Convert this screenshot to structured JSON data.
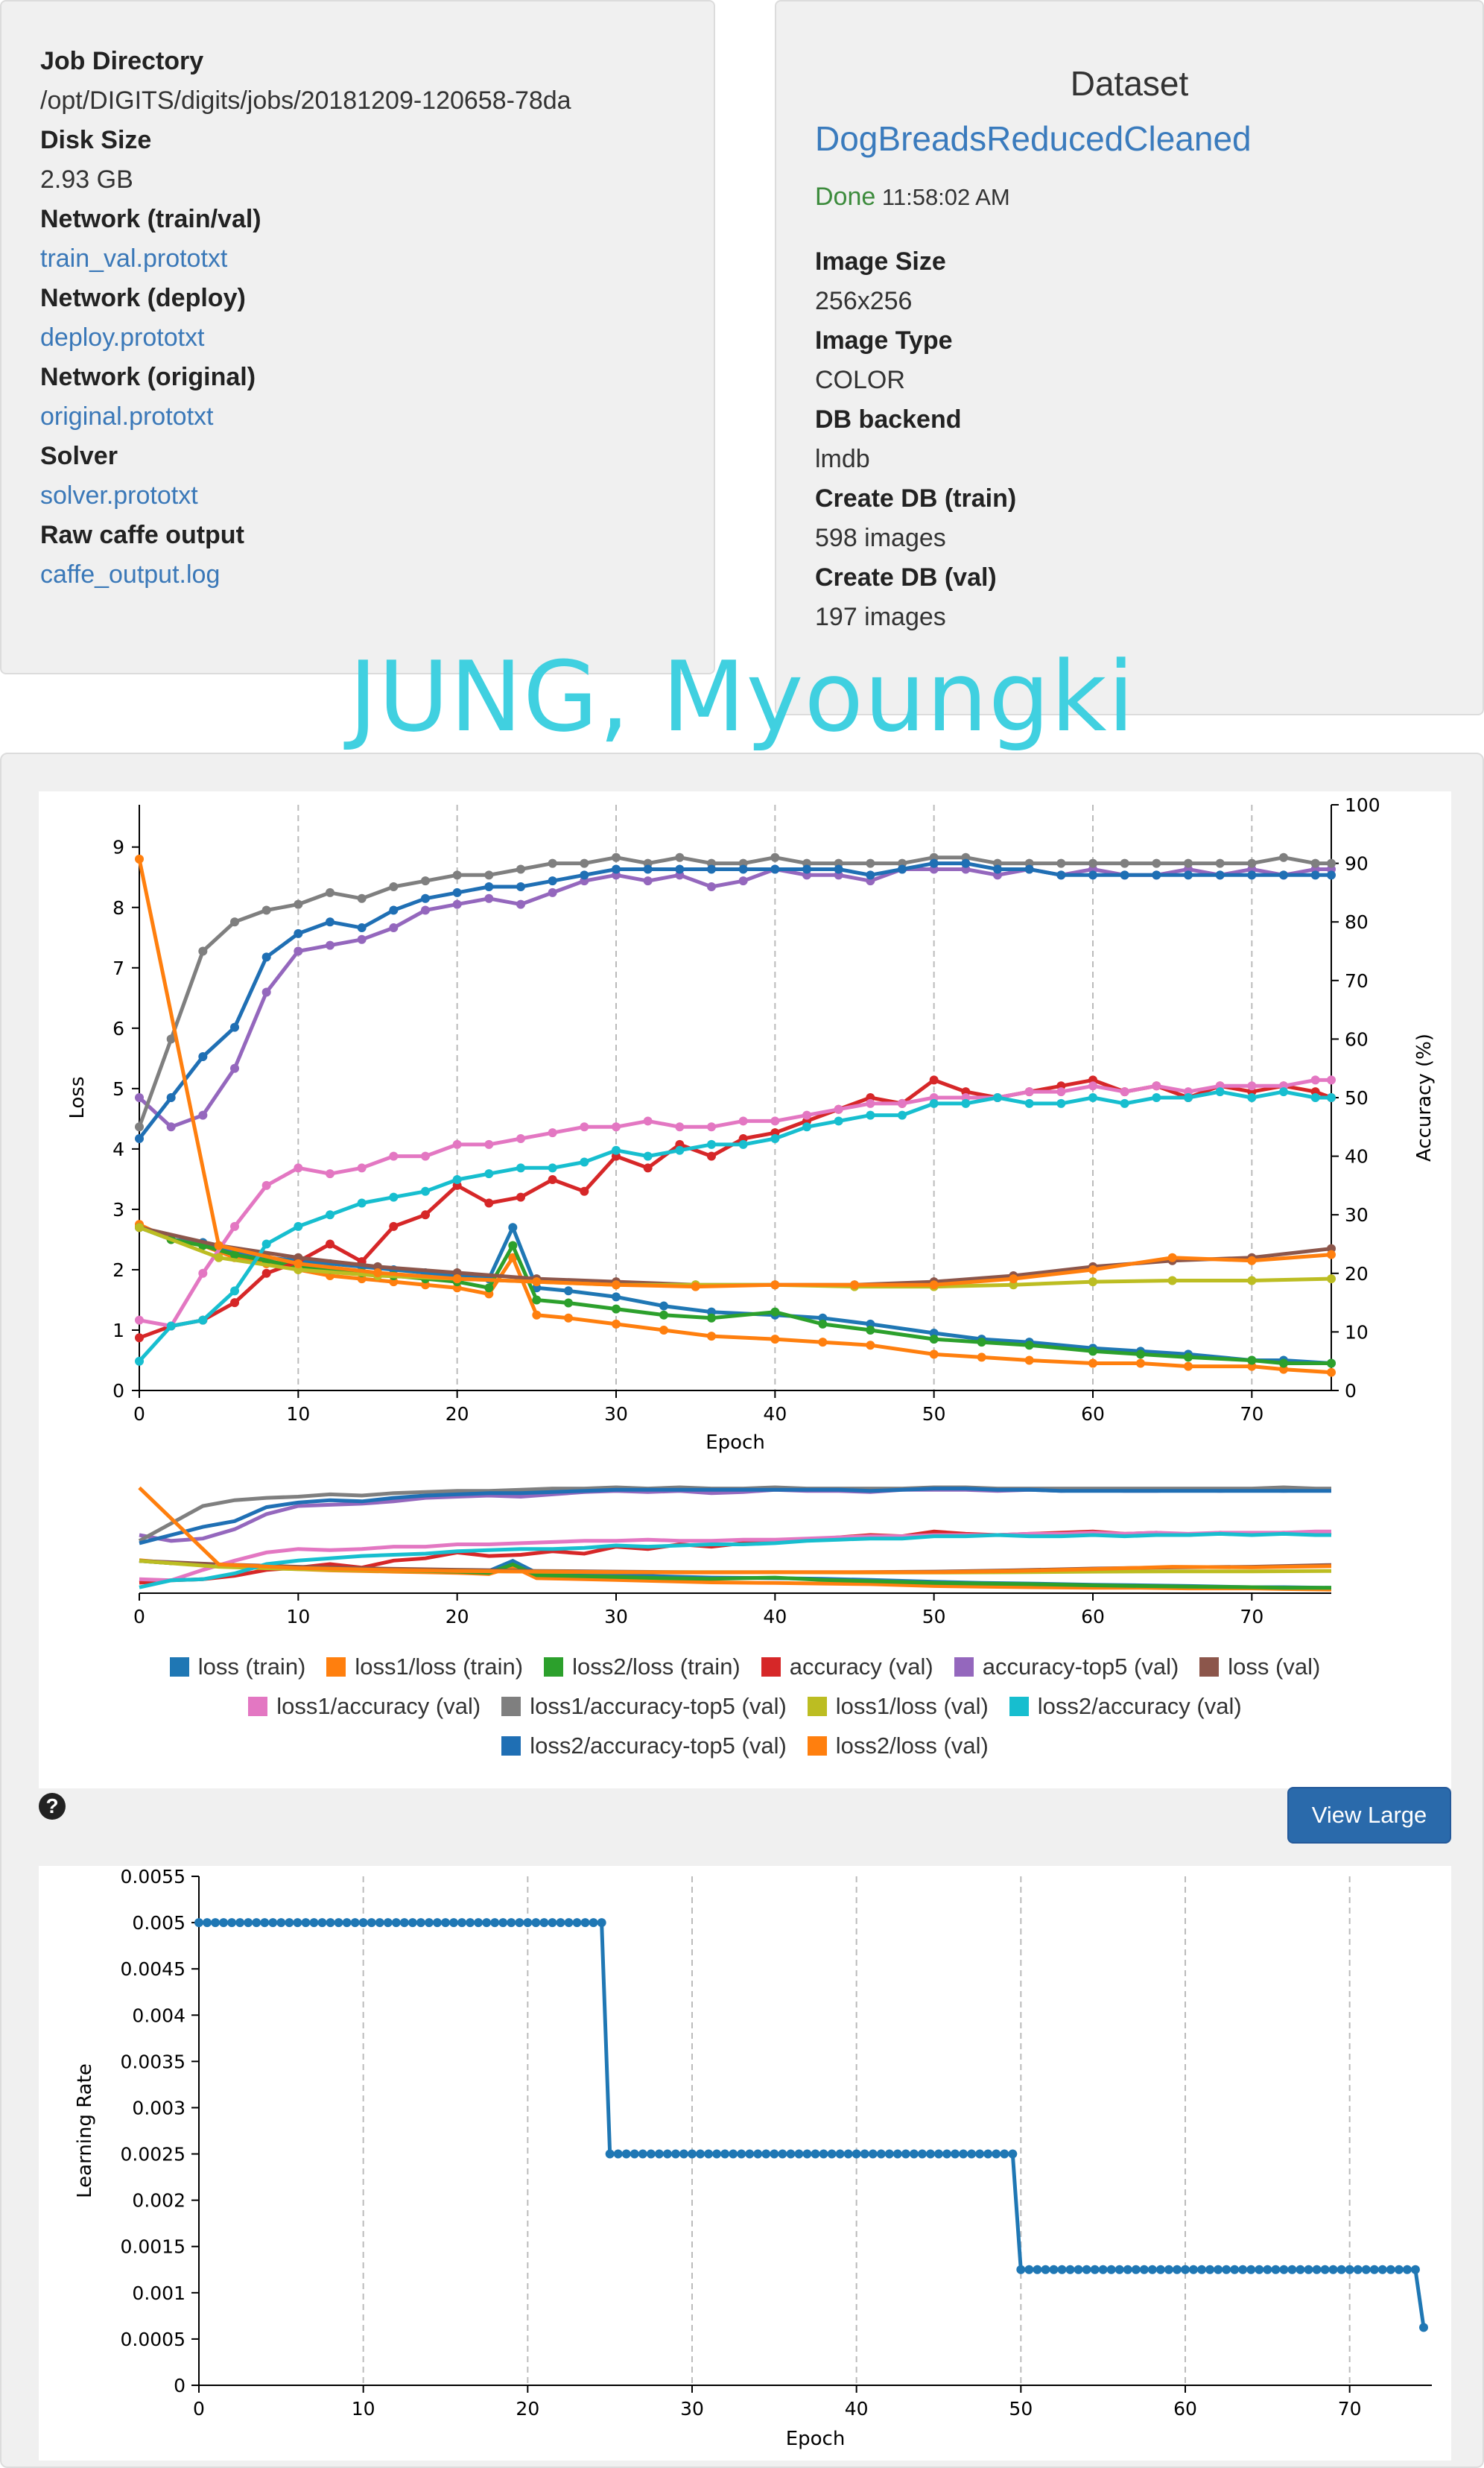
{
  "job": {
    "job_directory_label": "Job Directory",
    "job_directory_value": "/opt/DIGITS/digits/jobs/20181209-120658-78da",
    "disk_size_label": "Disk Size",
    "disk_size_value": "2.93 GB",
    "network_trainval_label": "Network (train/val)",
    "network_trainval_link": "train_val.prototxt",
    "network_deploy_label": "Network (deploy)",
    "network_deploy_link": "deploy.prototxt",
    "network_original_label": "Network (original)",
    "network_original_link": "original.prototxt",
    "solver_label": "Solver",
    "solver_link": "solver.prototxt",
    "raw_output_label": "Raw caffe output",
    "raw_output_link": "caffe_output.log"
  },
  "dataset": {
    "title": "Dataset",
    "name": "DogBreadsReducedCleaned",
    "status": "Done",
    "time": "11:58:02 AM",
    "image_size_label": "Image Size",
    "image_size_value": "256x256",
    "image_type_label": "Image Type",
    "image_type_value": "COLOR",
    "db_backend_label": "DB backend",
    "db_backend_value": "lmdb",
    "create_train_label": "Create DB (train)",
    "create_train_value": "598 images",
    "create_val_label": "Create DB (val)",
    "create_val_value": "197 images"
  },
  "watermark": "JUNG, Myoungki",
  "view_large_label": "View Large",
  "help_glyph": "?",
  "chart_data": [
    {
      "type": "line",
      "xlabel": "Epoch",
      "ylabel": "Loss",
      "y2label": "Accuracy (%)",
      "xlim": [
        0,
        75
      ],
      "ylim": [
        0,
        9.7
      ],
      "y2lim": [
        0,
        100
      ],
      "xticks": [
        "0",
        "10",
        "20",
        "30",
        "40",
        "50",
        "60",
        "70"
      ],
      "yticks": [
        "0",
        "1",
        "2",
        "3",
        "4",
        "5",
        "6",
        "7",
        "8",
        "9"
      ],
      "y2ticks": [
        "0",
        "10",
        "20",
        "30",
        "40",
        "50",
        "60",
        "70",
        "80",
        "90",
        "100"
      ],
      "grid": "vertical dashed at x ticks",
      "series": [
        {
          "name": "loss (train)",
          "color": "#1f77b4",
          "axis": "loss",
          "x": [
            0,
            2,
            4,
            6,
            8,
            10,
            12,
            14,
            16,
            18,
            20,
            22,
            23.5,
            25,
            27,
            30,
            33,
            36,
            40,
            43,
            46,
            50,
            53,
            56,
            60,
            63,
            66,
            70,
            72,
            75
          ],
          "values": [
            2.7,
            2.5,
            2.45,
            2.3,
            2.2,
            2.15,
            2.1,
            2.05,
            2.0,
            1.95,
            1.9,
            1.85,
            2.7,
            1.7,
            1.65,
            1.55,
            1.4,
            1.3,
            1.25,
            1.2,
            1.1,
            0.95,
            0.85,
            0.8,
            0.7,
            0.65,
            0.6,
            0.5,
            0.5,
            0.45
          ]
        },
        {
          "name": "loss1/loss (train)",
          "color": "#ff7f0e",
          "axis": "loss",
          "x": [
            0,
            2,
            4,
            6,
            8,
            10,
            12,
            14,
            16,
            18,
            20,
            22,
            23.5,
            25,
            27,
            30,
            33,
            36,
            40,
            43,
            46,
            50,
            53,
            56,
            60,
            63,
            66,
            70,
            72,
            75
          ],
          "values": [
            2.75,
            2.5,
            2.4,
            2.2,
            2.1,
            2.0,
            1.9,
            1.85,
            1.8,
            1.75,
            1.7,
            1.6,
            2.2,
            1.25,
            1.2,
            1.1,
            1.0,
            0.9,
            0.85,
            0.8,
            0.75,
            0.6,
            0.55,
            0.5,
            0.45,
            0.45,
            0.4,
            0.4,
            0.35,
            0.3
          ]
        },
        {
          "name": "loss2/loss (train)",
          "color": "#2ca02c",
          "axis": "loss",
          "x": [
            0,
            2,
            4,
            6,
            8,
            10,
            12,
            14,
            16,
            18,
            20,
            22,
            23.5,
            25,
            27,
            30,
            33,
            36,
            40,
            43,
            46,
            50,
            53,
            56,
            60,
            63,
            66,
            70,
            72,
            75
          ],
          "values": [
            2.7,
            2.5,
            2.4,
            2.25,
            2.15,
            2.05,
            2.0,
            1.95,
            1.9,
            1.85,
            1.8,
            1.7,
            2.4,
            1.5,
            1.45,
            1.35,
            1.25,
            1.2,
            1.3,
            1.1,
            1.0,
            0.85,
            0.8,
            0.75,
            0.65,
            0.6,
            0.55,
            0.5,
            0.45,
            0.45
          ]
        },
        {
          "name": "accuracy (val)",
          "color": "#d62728",
          "axis": "accuracy",
          "x": [
            0,
            2,
            4,
            6,
            8,
            10,
            12,
            14,
            16,
            18,
            20,
            22,
            24,
            26,
            28,
            30,
            32,
            34,
            36,
            38,
            40,
            42,
            44,
            46,
            48,
            50,
            52,
            54,
            56,
            58,
            60,
            62,
            64,
            66,
            68,
            70,
            72,
            74,
            75
          ],
          "values": [
            9,
            11,
            12,
            15,
            20,
            22,
            25,
            22,
            28,
            30,
            35,
            32,
            33,
            36,
            34,
            40,
            38,
            42,
            40,
            43,
            44,
            46,
            48,
            50,
            49,
            53,
            51,
            50,
            51,
            52,
            53,
            51,
            52,
            50,
            52,
            51,
            52,
            51,
            50
          ]
        },
        {
          "name": "accuracy-top5 (val)",
          "color": "#9467bd",
          "axis": "accuracy",
          "x": [
            0,
            2,
            4,
            6,
            8,
            10,
            12,
            14,
            16,
            18,
            20,
            22,
            24,
            26,
            28,
            30,
            32,
            34,
            36,
            38,
            40,
            42,
            44,
            46,
            48,
            50,
            52,
            54,
            56,
            58,
            60,
            62,
            64,
            66,
            68,
            70,
            72,
            74,
            75
          ],
          "values": [
            50,
            45,
            47,
            55,
            68,
            75,
            76,
            77,
            79,
            82,
            83,
            84,
            83,
            85,
            87,
            88,
            87,
            88,
            86,
            87,
            89,
            88,
            88,
            87,
            89,
            89,
            89,
            88,
            89,
            88,
            89,
            88,
            88,
            89,
            88,
            89,
            88,
            89,
            89
          ]
        },
        {
          "name": "loss (val)",
          "color": "#8c564b",
          "axis": "loss",
          "x": [
            0,
            5,
            10,
            15,
            20,
            25,
            30,
            35,
            40,
            45,
            50,
            55,
            60,
            65,
            70,
            75
          ],
          "values": [
            2.7,
            2.4,
            2.2,
            2.05,
            1.95,
            1.85,
            1.8,
            1.75,
            1.75,
            1.75,
            1.8,
            1.9,
            2.05,
            2.15,
            2.2,
            2.35
          ]
        },
        {
          "name": "loss1/accuracy (val)",
          "color": "#e377c2",
          "axis": "accuracy",
          "x": [
            0,
            2,
            4,
            6,
            8,
            10,
            12,
            14,
            16,
            18,
            20,
            22,
            24,
            26,
            28,
            30,
            32,
            34,
            36,
            38,
            40,
            42,
            44,
            46,
            48,
            50,
            52,
            54,
            56,
            58,
            60,
            62,
            64,
            66,
            68,
            70,
            72,
            74,
            75
          ],
          "values": [
            12,
            11,
            20,
            28,
            35,
            38,
            37,
            38,
            40,
            40,
            42,
            42,
            43,
            44,
            45,
            45,
            46,
            45,
            45,
            46,
            46,
            47,
            48,
            49,
            49,
            50,
            50,
            50,
            51,
            51,
            52,
            51,
            52,
            51,
            52,
            52,
            52,
            53,
            53
          ]
        },
        {
          "name": "loss1/accuracy-top5 (val)",
          "color": "#7f7f7f",
          "axis": "accuracy",
          "x": [
            0,
            2,
            4,
            6,
            8,
            10,
            12,
            14,
            16,
            18,
            20,
            22,
            24,
            26,
            28,
            30,
            32,
            34,
            36,
            38,
            40,
            42,
            44,
            46,
            48,
            50,
            52,
            54,
            56,
            58,
            60,
            62,
            64,
            66,
            68,
            70,
            72,
            74,
            75
          ],
          "values": [
            45,
            60,
            75,
            80,
            82,
            83,
            85,
            84,
            86,
            87,
            88,
            88,
            89,
            90,
            90,
            91,
            90,
            91,
            90,
            90,
            91,
            90,
            90,
            90,
            90,
            91,
            91,
            90,
            90,
            90,
            90,
            90,
            90,
            90,
            90,
            90,
            91,
            90,
            90
          ]
        },
        {
          "name": "loss1/loss (val)",
          "color": "#bcbd22",
          "axis": "loss",
          "x": [
            0,
            5,
            10,
            15,
            20,
            25,
            30,
            35,
            40,
            45,
            50,
            55,
            60,
            65,
            70,
            75
          ],
          "values": [
            2.7,
            2.2,
            2.0,
            1.9,
            1.85,
            1.8,
            1.75,
            1.75,
            1.75,
            1.72,
            1.72,
            1.75,
            1.8,
            1.82,
            1.82,
            1.85
          ]
        },
        {
          "name": "loss2/accuracy (val)",
          "color": "#17becf",
          "axis": "accuracy",
          "x": [
            0,
            2,
            4,
            6,
            8,
            10,
            12,
            14,
            16,
            18,
            20,
            22,
            24,
            26,
            28,
            30,
            32,
            34,
            36,
            38,
            40,
            42,
            44,
            46,
            48,
            50,
            52,
            54,
            56,
            58,
            60,
            62,
            64,
            66,
            68,
            70,
            72,
            74,
            75
          ],
          "values": [
            5,
            11,
            12,
            17,
            25,
            28,
            30,
            32,
            33,
            34,
            36,
            37,
            38,
            38,
            39,
            41,
            40,
            41,
            42,
            42,
            43,
            45,
            46,
            47,
            47,
            49,
            49,
            50,
            49,
            49,
            50,
            49,
            50,
            50,
            51,
            50,
            51,
            50,
            50
          ]
        },
        {
          "name": "loss2/accuracy-top5 (val)",
          "color": "#1f6fb4",
          "axis": "accuracy",
          "x": [
            0,
            2,
            4,
            6,
            8,
            10,
            12,
            14,
            16,
            18,
            20,
            22,
            24,
            26,
            28,
            30,
            32,
            34,
            36,
            38,
            40,
            42,
            44,
            46,
            48,
            50,
            52,
            54,
            56,
            58,
            60,
            62,
            64,
            66,
            68,
            70,
            72,
            74,
            75
          ],
          "values": [
            43,
            50,
            57,
            62,
            74,
            78,
            80,
            79,
            82,
            84,
            85,
            86,
            86,
            87,
            88,
            89,
            89,
            89,
            89,
            89,
            89,
            89,
            89,
            88,
            89,
            90,
            90,
            89,
            89,
            88,
            88,
            88,
            88,
            88,
            88,
            88,
            88,
            88,
            88
          ]
        },
        {
          "name": "loss2/loss (val)",
          "color": "#ff7f0e",
          "axis": "loss",
          "x": [
            0,
            5,
            10,
            15,
            20,
            25,
            30,
            35,
            40,
            45,
            50,
            55,
            60,
            65,
            70,
            75
          ],
          "values": [
            8.8,
            2.4,
            2.1,
            1.95,
            1.85,
            1.8,
            1.75,
            1.72,
            1.75,
            1.75,
            1.75,
            1.85,
            2.0,
            2.2,
            2.15,
            2.25
          ]
        }
      ],
      "legend": {
        "placement": "bottom",
        "rows": [
          [
            "loss (train)",
            "loss1/loss (train)",
            "loss2/loss (train)",
            "accuracy (val)",
            "accuracy-top5 (val)",
            "loss (val)"
          ],
          [
            "loss1/accuracy (val)",
            "loss1/accuracy-top5 (val)",
            "loss1/loss (val)",
            "loss2/accuracy (val)"
          ],
          [
            "loss2/accuracy-top5 (val)",
            "loss2/loss (val)"
          ]
        ]
      }
    },
    {
      "type": "line",
      "xlabel": "Epoch",
      "ylabel": "Learning Rate",
      "xlim": [
        0,
        75
      ],
      "ylim": [
        0,
        0.0055
      ],
      "xticks": [
        "0",
        "10",
        "20",
        "30",
        "40",
        "50",
        "60",
        "70"
      ],
      "yticks": [
        "0",
        "0.0005",
        "0.001",
        "0.0015",
        "0.002",
        "0.0025",
        "0.003",
        "0.0035",
        "0.004",
        "0.0045",
        "0.005",
        "0.0055"
      ],
      "grid": "vertical dashed at x ticks",
      "series": [
        {
          "name": "",
          "color": "#1f77b4",
          "segments": [
            {
              "x_start": 0,
              "x_end": 24.5,
              "step": 0.5,
              "value": 0.005
            },
            {
              "x_start": 25,
              "x_end": 49.5,
              "step": 0.5,
              "value": 0.0025
            },
            {
              "x_start": 50,
              "x_end": 74,
              "step": 0.5,
              "value": 0.00125
            },
            {
              "x_start": 74.5,
              "x_end": 74.5,
              "step": 0.5,
              "value": 0.000625
            }
          ]
        }
      ]
    }
  ]
}
